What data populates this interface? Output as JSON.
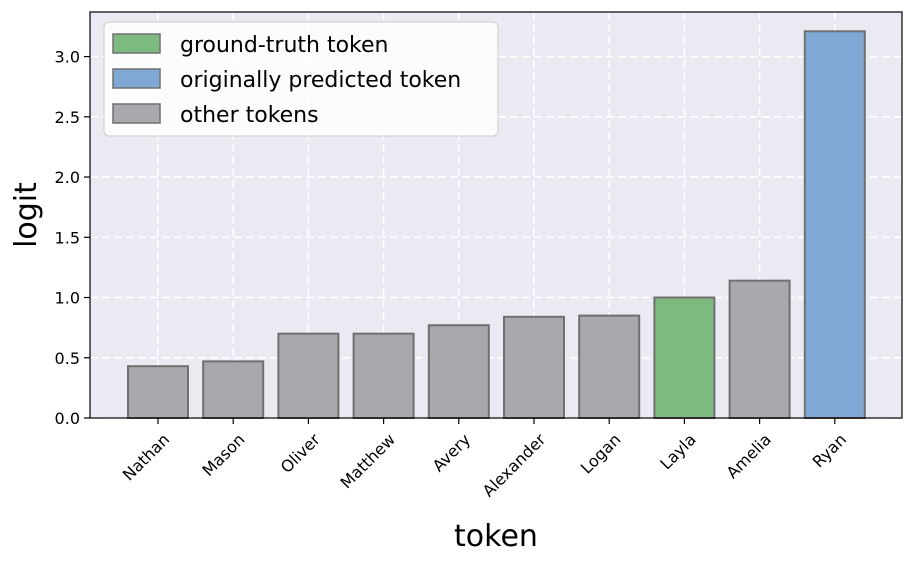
{
  "chart_data": {
    "type": "bar",
    "categories": [
      "Nathan",
      "Mason",
      "Oliver",
      "Matthew",
      "Avery",
      "Alexander",
      "Logan",
      "Layla",
      "Amelia",
      "Ryan"
    ],
    "values": [
      0.43,
      0.47,
      0.7,
      0.7,
      0.77,
      0.84,
      0.85,
      1.0,
      1.14,
      3.21
    ],
    "bar_roles": [
      "other",
      "other",
      "other",
      "other",
      "other",
      "other",
      "other",
      "ground_truth",
      "other",
      "predicted"
    ],
    "xlabel": "token",
    "ylabel": "logit",
    "ylim": [
      0,
      3.37
    ],
    "yticks": [
      "0.0",
      "0.5",
      "1.0",
      "1.5",
      "2.0",
      "2.5",
      "3.0"
    ],
    "ytick_values": [
      0,
      0.5,
      1.0,
      1.5,
      2.0,
      2.5,
      3.0
    ],
    "grid": true,
    "legend_position": "top-left",
    "legend": [
      {
        "label": "ground-truth token",
        "role": "ground_truth"
      },
      {
        "label": "originally predicted token",
        "role": "predicted"
      },
      {
        "label": "other tokens",
        "role": "other"
      }
    ],
    "colors": {
      "ground_truth": "#7dba7f",
      "predicted": "#7fa8d4",
      "other": "#a9a9ad",
      "background": "#eaeaf2",
      "edge": "#707070"
    }
  }
}
